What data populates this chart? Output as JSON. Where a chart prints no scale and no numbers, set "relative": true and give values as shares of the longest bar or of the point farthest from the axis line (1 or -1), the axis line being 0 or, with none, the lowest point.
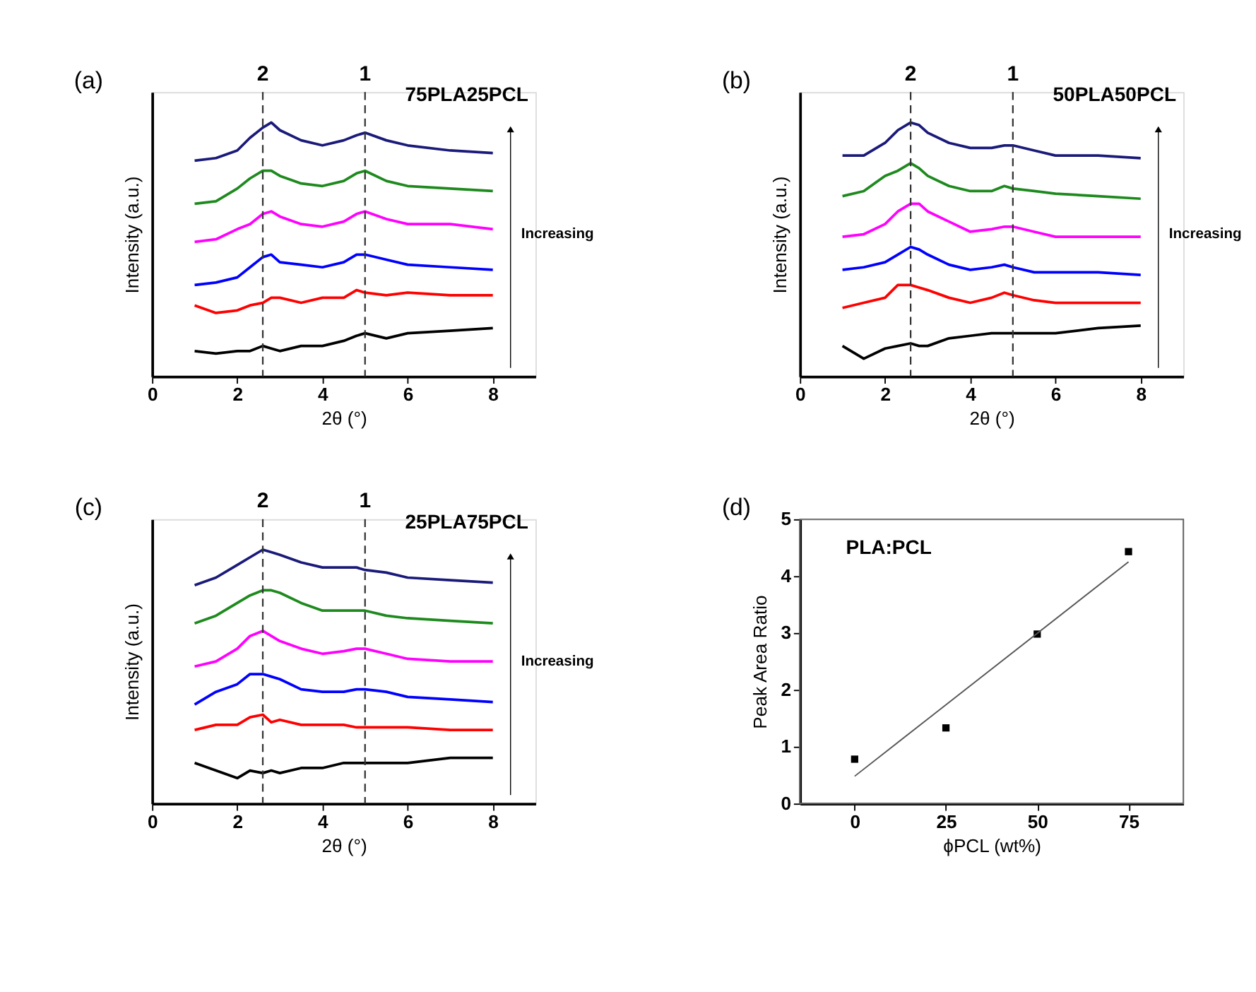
{
  "chart_data": [
    {
      "type": "line",
      "title": "75PLA25PCL",
      "xlabel": "2θ (°)",
      "ylabel": "Intensity (a.u.)",
      "relative": true,
      "tick_labels": "x",
      "legend": false,
      "grid": false,
      "line_style": "solid",
      "annotations": [
        "(a)",
        "Increasing",
        "2",
        "1"
      ],
      "xlim": [
        0,
        9
      ],
      "xticks": [
        0,
        2,
        4,
        6,
        8
      ],
      "x": [
        1,
        1.5,
        2,
        2.3,
        2.6,
        2.8,
        3,
        3.5,
        4,
        4.5,
        4.8,
        5,
        5.5,
        6,
        7,
        8
      ],
      "ref_lines": [
        {
          "axis": "x",
          "value": 2.6,
          "color": "#333333",
          "line_style": "dashed"
        },
        {
          "axis": "x",
          "value": 5,
          "color": "#333333",
          "line_style": "dashed"
        }
      ],
      "series": [
        {
          "color": "#1a1a7a",
          "values": [
            0.85,
            0.86,
            0.89,
            0.94,
            0.98,
            1.0,
            0.97,
            0.93,
            0.91,
            0.93,
            0.95,
            0.96,
            0.93,
            0.91,
            0.89,
            0.88
          ]
        },
        {
          "color": "#1e8a1e",
          "values": [
            0.68,
            0.69,
            0.74,
            0.78,
            0.81,
            0.81,
            0.79,
            0.76,
            0.75,
            0.77,
            0.8,
            0.81,
            0.77,
            0.75,
            0.74,
            0.73
          ]
        },
        {
          "color": "#ff00ff",
          "values": [
            0.53,
            0.54,
            0.58,
            0.6,
            0.64,
            0.65,
            0.63,
            0.6,
            0.59,
            0.61,
            0.64,
            0.65,
            0.62,
            0.6,
            0.6,
            0.58
          ]
        },
        {
          "color": "#0000ff",
          "values": [
            0.36,
            0.37,
            0.39,
            0.43,
            0.47,
            0.48,
            0.45,
            0.44,
            0.43,
            0.45,
            0.48,
            0.48,
            0.46,
            0.44,
            0.43,
            0.42
          ]
        },
        {
          "color": "#ff0000",
          "values": [
            0.28,
            0.25,
            0.26,
            0.28,
            0.29,
            0.31,
            0.31,
            0.29,
            0.31,
            0.31,
            0.34,
            0.33,
            0.32,
            0.33,
            0.32,
            0.32
          ]
        },
        {
          "color": "#000000",
          "values": [
            0.1,
            0.09,
            0.1,
            0.1,
            0.12,
            0.11,
            0.1,
            0.12,
            0.12,
            0.14,
            0.16,
            0.17,
            0.15,
            0.17,
            0.18,
            0.19
          ]
        }
      ]
    },
    {
      "type": "line",
      "title": "50PLA50PCL",
      "xlabel": "2θ (°)",
      "ylabel": "Intensity (a.u.)",
      "relative": true,
      "tick_labels": "x",
      "legend": false,
      "grid": false,
      "line_style": "solid",
      "annotations": [
        "(b)",
        "Increasing",
        "2",
        "1"
      ],
      "xlim": [
        0,
        9
      ],
      "xticks": [
        0,
        2,
        4,
        6,
        8
      ],
      "x": [
        1,
        1.5,
        2,
        2.3,
        2.6,
        2.8,
        3,
        3.5,
        4,
        4.5,
        4.8,
        5,
        5.5,
        6,
        7,
        8
      ],
      "ref_lines": [
        {
          "axis": "x",
          "value": 2.6,
          "color": "#333333",
          "line_style": "dashed"
        },
        {
          "axis": "x",
          "value": 5,
          "color": "#333333",
          "line_style": "dashed"
        }
      ],
      "series": [
        {
          "color": "#1a1a7a",
          "values": [
            0.87,
            0.87,
            0.92,
            0.97,
            1.0,
            0.99,
            0.96,
            0.92,
            0.9,
            0.9,
            0.91,
            0.91,
            0.89,
            0.87,
            0.87,
            0.86
          ]
        },
        {
          "color": "#1e8a1e",
          "values": [
            0.71,
            0.73,
            0.79,
            0.81,
            0.84,
            0.82,
            0.79,
            0.75,
            0.73,
            0.73,
            0.75,
            0.74,
            0.73,
            0.72,
            0.71,
            0.7
          ]
        },
        {
          "color": "#ff00ff",
          "values": [
            0.55,
            0.56,
            0.6,
            0.65,
            0.68,
            0.68,
            0.65,
            0.61,
            0.57,
            0.58,
            0.59,
            0.59,
            0.57,
            0.55,
            0.55,
            0.55
          ]
        },
        {
          "color": "#0000ff",
          "values": [
            0.42,
            0.43,
            0.45,
            0.48,
            0.51,
            0.5,
            0.48,
            0.44,
            0.42,
            0.43,
            0.44,
            0.43,
            0.41,
            0.41,
            0.41,
            0.4
          ]
        },
        {
          "color": "#ff0000",
          "values": [
            0.27,
            0.29,
            0.31,
            0.36,
            0.36,
            0.35,
            0.34,
            0.31,
            0.29,
            0.31,
            0.33,
            0.32,
            0.3,
            0.29,
            0.29,
            0.29
          ]
        },
        {
          "color": "#000000",
          "values": [
            0.12,
            0.07,
            0.11,
            0.12,
            0.13,
            0.12,
            0.12,
            0.15,
            0.16,
            0.17,
            0.17,
            0.17,
            0.17,
            0.17,
            0.19,
            0.2
          ]
        }
      ]
    },
    {
      "type": "line",
      "title": "25PLA75PCL",
      "xlabel": "2θ (°)",
      "ylabel": "Intensity (a.u.)",
      "relative": true,
      "tick_labels": "x",
      "legend": false,
      "grid": false,
      "line_style": "solid",
      "annotations": [
        "(c)",
        "Increasing",
        "2",
        "1"
      ],
      "xlim": [
        0,
        9
      ],
      "xticks": [
        0,
        2,
        4,
        6,
        8
      ],
      "x": [
        1,
        1.5,
        2,
        2.3,
        2.6,
        2.8,
        3,
        3.5,
        4,
        4.5,
        4.8,
        5,
        5.5,
        6,
        7,
        8
      ],
      "ref_lines": [
        {
          "axis": "x",
          "value": 2.6,
          "color": "#333333",
          "line_style": "dashed"
        },
        {
          "axis": "x",
          "value": 5,
          "color": "#333333",
          "line_style": "dashed"
        }
      ],
      "series": [
        {
          "color": "#1a1a7a",
          "values": [
            0.86,
            0.89,
            0.94,
            0.97,
            1.0,
            0.99,
            0.98,
            0.95,
            0.93,
            0.93,
            0.93,
            0.92,
            0.91,
            0.89,
            0.88,
            0.87
          ]
        },
        {
          "color": "#1e8a1e",
          "values": [
            0.71,
            0.74,
            0.79,
            0.82,
            0.84,
            0.84,
            0.83,
            0.79,
            0.76,
            0.76,
            0.76,
            0.76,
            0.74,
            0.73,
            0.72,
            0.71
          ]
        },
        {
          "color": "#ff00ff",
          "values": [
            0.54,
            0.56,
            0.61,
            0.66,
            0.68,
            0.66,
            0.64,
            0.61,
            0.59,
            0.6,
            0.61,
            0.61,
            0.59,
            0.57,
            0.56,
            0.56
          ]
        },
        {
          "color": "#0000ff",
          "values": [
            0.39,
            0.44,
            0.47,
            0.51,
            0.51,
            0.5,
            0.49,
            0.45,
            0.44,
            0.44,
            0.45,
            0.45,
            0.44,
            0.42,
            0.41,
            0.4
          ]
        },
        {
          "color": "#ff0000",
          "values": [
            0.29,
            0.31,
            0.31,
            0.34,
            0.35,
            0.32,
            0.33,
            0.31,
            0.31,
            0.31,
            0.3,
            0.3,
            0.3,
            0.3,
            0.29,
            0.29
          ]
        },
        {
          "color": "#000000",
          "values": [
            0.16,
            0.13,
            0.1,
            0.13,
            0.12,
            0.13,
            0.12,
            0.14,
            0.14,
            0.16,
            0.16,
            0.16,
            0.16,
            0.16,
            0.18,
            0.18
          ]
        }
      ]
    },
    {
      "type": "scatter",
      "title": "PLA:PCL",
      "xlabel": "ϕPCL (wt%)",
      "ylabel": "Peak Area Ratio",
      "legend": false,
      "grid": false,
      "annotations": [
        "(d)"
      ],
      "xlim": [
        -15,
        90
      ],
      "xticks": [
        0,
        25,
        50,
        75
      ],
      "ylim": [
        0,
        5
      ],
      "yticks": [
        0,
        1,
        2,
        3,
        4,
        5
      ],
      "series": [
        {
          "type": "scatter",
          "marker": "square",
          "color": "#000000",
          "x": [
            0,
            25,
            50,
            75
          ],
          "values": [
            0.78,
            1.33,
            2.98,
            4.43
          ]
        },
        {
          "type": "line",
          "line_style": "solid",
          "color": "#555555",
          "x": [
            0,
            75
          ],
          "values": [
            0.48,
            4.25
          ]
        }
      ]
    }
  ]
}
